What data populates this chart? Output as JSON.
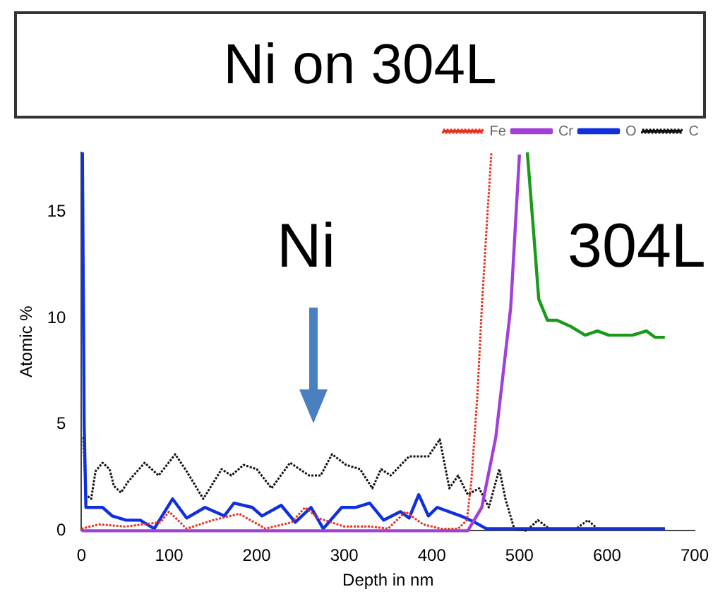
{
  "chart_data": {
    "type": "line",
    "title": "Ni on 304L",
    "xlabel": "Depth in nm",
    "ylabel": "Atomic %",
    "annotations": [
      "Ni",
      "304L"
    ],
    "xlim": [
      0,
      700
    ],
    "xticks": [
      0,
      100,
      200,
      300,
      400,
      500,
      600,
      700
    ],
    "ylim": [
      0,
      17.8
    ],
    "yticks": [
      0,
      5,
      10,
      15
    ],
    "grid": false,
    "legend": "top right",
    "marker": "none",
    "series": [
      {
        "name": "Fe",
        "color": "#e8321e",
        "line_style": "dotted",
        "x": [
          0,
          20,
          50,
          90,
          100,
          120,
          150,
          180,
          210,
          240,
          255,
          270,
          300,
          330,
          350,
          370,
          390,
          410,
          430,
          440,
          445,
          452,
          457,
          463,
          468
        ],
        "values": [
          0.1,
          0.3,
          0.2,
          0.4,
          0.9,
          0.1,
          0.5,
          0.8,
          0.1,
          0.4,
          1.1,
          0.6,
          0.2,
          0.2,
          0.1,
          0.9,
          0.3,
          0.1,
          0.1,
          0.5,
          2.3,
          6.4,
          10.5,
          14.6,
          17.8
        ]
      },
      {
        "name": "Cr",
        "color": "#a040d8",
        "line_style": "solid",
        "x": [
          0,
          441,
          457,
          473,
          490,
          500
        ],
        "values": [
          0,
          0,
          1.1,
          4.4,
          10.5,
          17.7
        ]
      },
      {
        "name": "O",
        "color": "#1030e0",
        "line_style": "solid",
        "x": [
          1,
          3,
          5,
          24,
          35,
          51,
          67,
          83,
          104,
          120,
          141,
          163,
          174,
          195,
          206,
          228,
          244,
          262,
          276,
          297,
          313,
          329,
          345,
          364,
          374,
          385,
          396,
          406,
          433,
          449,
          462,
          666
        ],
        "values": [
          17.8,
          5,
          1.1,
          1.1,
          0.7,
          0.5,
          0.5,
          0.1,
          1.5,
          0.6,
          1.1,
          0.7,
          1.3,
          1.1,
          0.7,
          1.2,
          0.4,
          1.1,
          0.1,
          1.1,
          1.1,
          1.3,
          0.5,
          0.9,
          0.6,
          1.7,
          0.7,
          1.1,
          0.7,
          0.4,
          0.1,
          0.1
        ]
      },
      {
        "name": "C",
        "color": "#111111",
        "line_style": "dotted",
        "x": [
          2,
          5,
          11,
          16,
          24,
          32,
          37,
          45,
          53,
          72,
          88,
          107,
          120,
          139,
          160,
          171,
          185,
          200,
          217,
          238,
          260,
          273,
          286,
          302,
          318,
          332,
          342,
          353,
          374,
          396,
          409,
          420,
          430,
          441,
          454,
          465,
          477,
          484,
          494,
          508,
          521,
          534,
          565,
          578,
          589,
          666
        ],
        "values": [
          4.4,
          1.7,
          1.5,
          2.8,
          3.2,
          2.9,
          2.1,
          1.8,
          2.3,
          3.2,
          2.6,
          3.6,
          2.8,
          1.5,
          2.9,
          2.6,
          3.1,
          2.9,
          2.0,
          3.2,
          2.6,
          2.6,
          3.6,
          3.1,
          2.9,
          2.0,
          2.9,
          2.6,
          3.5,
          3.5,
          4.3,
          2.0,
          2.6,
          1.7,
          2.0,
          1.1,
          2.9,
          1.5,
          0.1,
          0,
          0.5,
          0.1,
          0.1,
          0.5,
          0.1,
          0.1
        ]
      },
      {
        "color": "#1a9a1a",
        "line_style": "solid",
        "x": [
          509,
          517,
          522,
          532,
          543,
          559,
          575,
          589,
          602,
          629,
          645,
          655,
          666
        ],
        "values": [
          17.8,
          13.6,
          10.9,
          9.9,
          9.9,
          9.6,
          9.2,
          9.4,
          9.2,
          9.2,
          9.4,
          9.1,
          9.1
        ]
      }
    ]
  }
}
